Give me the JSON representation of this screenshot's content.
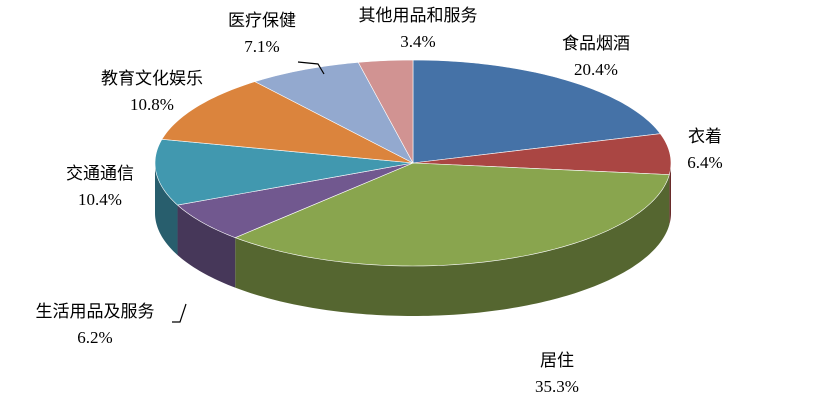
{
  "chart_data": {
    "type": "pie",
    "categories": [
      "食品烟酒",
      "衣着",
      "居住",
      "生活用品及服务",
      "交通通信",
      "教育文化娱乐",
      "医疗保健",
      "其他用品和服务"
    ],
    "values": [
      20.4,
      6.4,
      35.3,
      6.2,
      10.4,
      10.8,
      7.1,
      3.4
    ],
    "value_labels": [
      "20.4%",
      "6.4%",
      "35.3%",
      "6.2%",
      "10.4%",
      "10.8%",
      "7.1%",
      "3.4%"
    ],
    "colors": [
      "#4572a7",
      "#aa4643",
      "#89a54e",
      "#71588f",
      "#4198af",
      "#db843d",
      "#93a9cf",
      "#d19392"
    ]
  }
}
